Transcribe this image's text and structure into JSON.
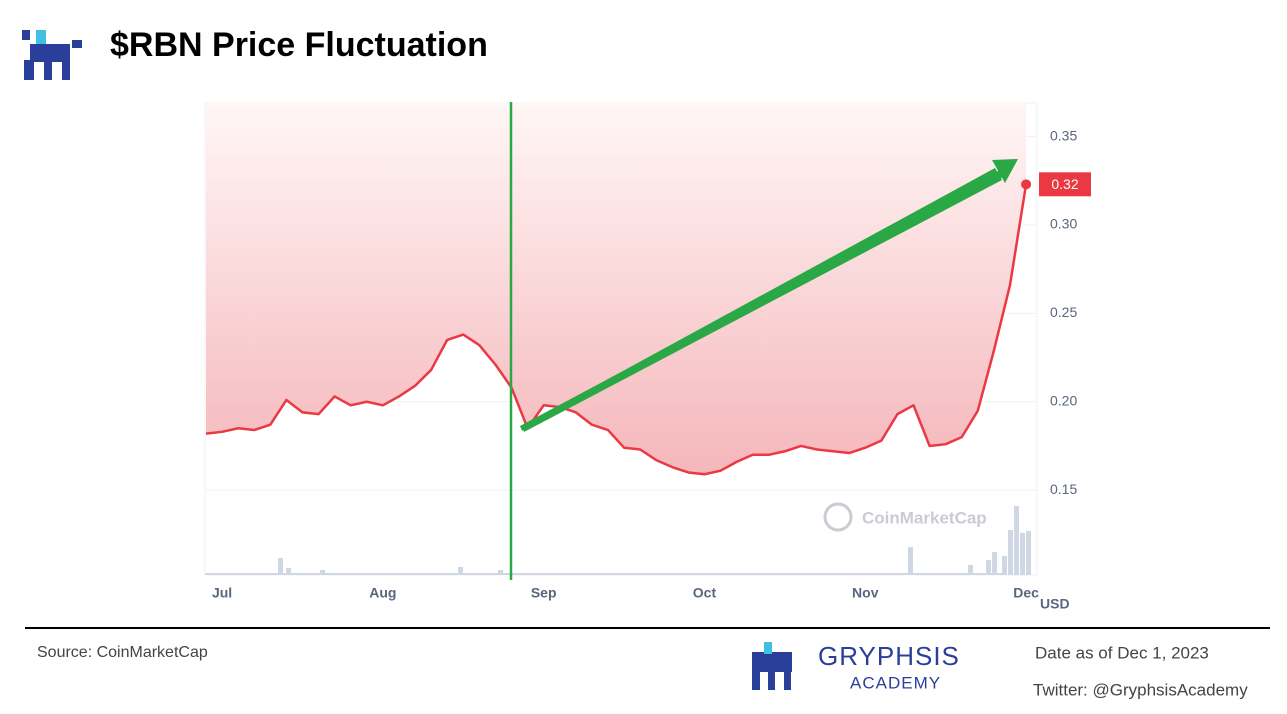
{
  "header": {
    "title": "$RBN Price Fluctuation"
  },
  "chart_data": {
    "type": "line",
    "categories": [
      null,
      "Jul",
      null,
      null,
      null,
      null,
      null,
      null,
      null,
      null,
      null,
      "Aug",
      null,
      null,
      null,
      null,
      null,
      null,
      null,
      null,
      null,
      "Sep",
      null,
      null,
      null,
      null,
      null,
      null,
      null,
      null,
      null,
      "Oct",
      null,
      null,
      null,
      null,
      null,
      null,
      null,
      null,
      null,
      "Nov",
      null,
      null,
      null,
      null,
      null,
      null,
      null,
      null,
      null,
      "Dec"
    ],
    "values": [
      0.182,
      0.183,
      0.185,
      0.184,
      0.187,
      0.201,
      0.194,
      0.193,
      0.203,
      0.198,
      0.2,
      0.198,
      0.203,
      0.209,
      0.218,
      0.235,
      0.238,
      0.232,
      0.221,
      0.208,
      0.185,
      0.198,
      0.197,
      0.194,
      0.187,
      0.184,
      0.174,
      0.173,
      0.167,
      0.163,
      0.16,
      0.159,
      0.161,
      0.166,
      0.17,
      0.17,
      0.172,
      0.175,
      0.173,
      0.172,
      0.171,
      0.174,
      0.178,
      0.193,
      0.198,
      0.175,
      0.176,
      0.18,
      0.195,
      0.229,
      0.266,
      0.323
    ],
    "current_price_label": "0.32",
    "color": "#ea3943",
    "ylim": [
      0.102,
      0.369
    ],
    "yticks": [
      0.15,
      {
        "value": 0.2,
        "label": "0.20"
      },
      0.25,
      {
        "value": 0.3,
        "label": "0.30"
      },
      0.35
    ],
    "y_unit": "USD",
    "grid": true,
    "watermark": "CoinMarketCap"
  },
  "footer": {
    "source": "Source: CoinMarketCap",
    "brand_name": "GRYPHSIS",
    "brand_sub": "ACADEMY",
    "date": "Date as of Dec 1, 2023",
    "twitter": "Twitter: @GryphsisAcademy"
  }
}
